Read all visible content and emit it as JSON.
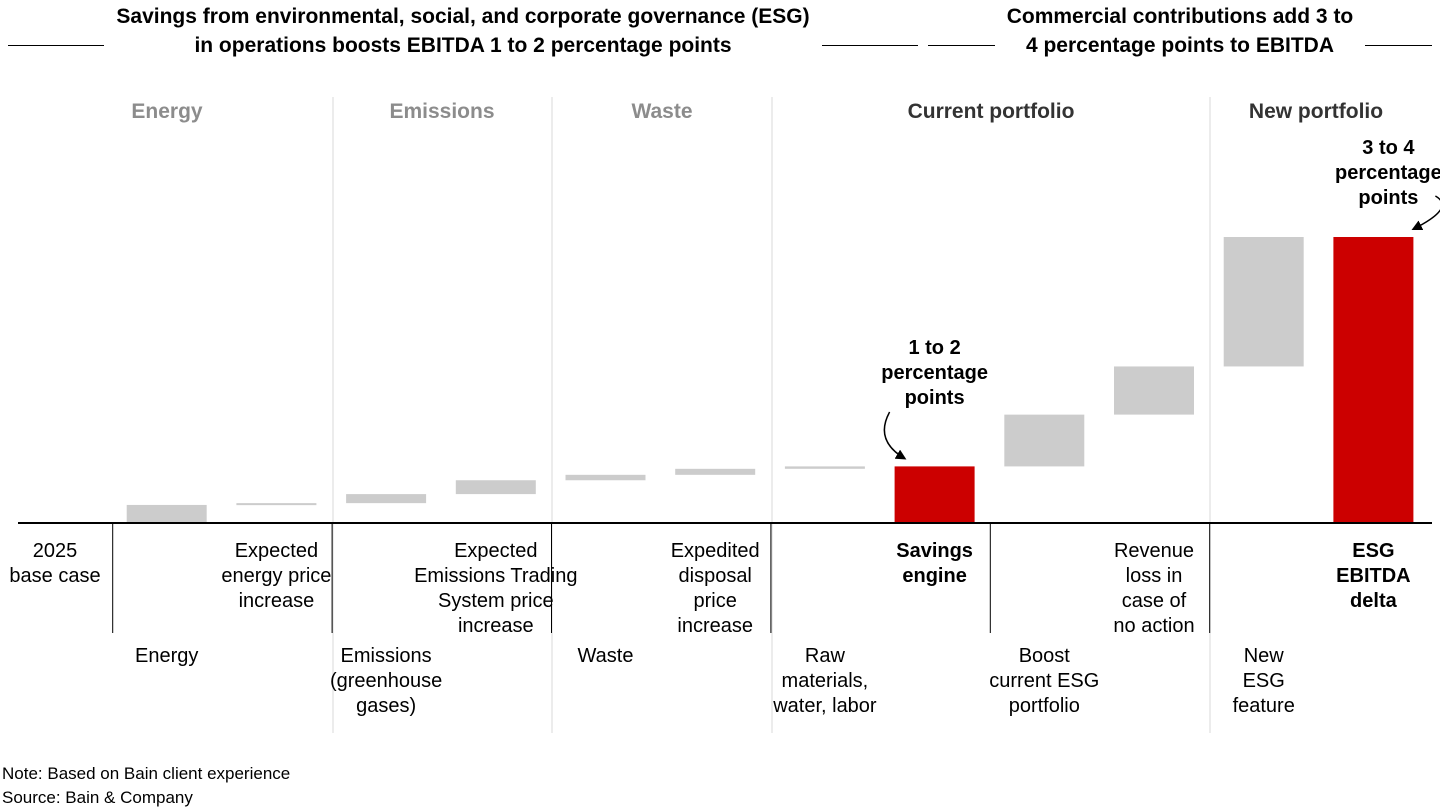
{
  "headers": {
    "left": "Savings from environmental, social, and corporate governance (ESG)\nin operations boosts EBITDA 1 to 2 percentage points",
    "right": "Commercial contributions add 3 to\n4 percentage points to EBITDA"
  },
  "footer": {
    "note": "Note: Based on Bain client experience",
    "source": "Source: Bain & Company"
  },
  "chart_data": {
    "type": "bar",
    "subtype": "waterfall",
    "groups": [
      {
        "label": "Energy",
        "color": "#8c8c8c"
      },
      {
        "label": "Emissions",
        "color": "#8c8c8c"
      },
      {
        "label": "Waste",
        "color": "#8c8c8c"
      },
      {
        "label": "Current portfolio",
        "color": "#333333"
      },
      {
        "label": "New portfolio",
        "color": "#333333"
      }
    ],
    "bars": [
      {
        "category": "2025\nbase case",
        "type": "axis",
        "base": 0,
        "top": 0
      },
      {
        "category": "Energy",
        "type": "step",
        "base": 0,
        "top": 0.3
      },
      {
        "category": "Expected\nenergy price\nincrease",
        "type": "step",
        "base": 0.3,
        "top": 0.33
      },
      {
        "category": "Emissions\n(greenhouse\ngases)",
        "type": "step",
        "base": 0.33,
        "top": 0.48
      },
      {
        "category": "Expected\nEmissions Trading\nSystem price\nincrease",
        "type": "step",
        "base": 0.48,
        "top": 0.71
      },
      {
        "category": "Waste",
        "type": "step",
        "base": 0.71,
        "top": 0.8
      },
      {
        "category": "Expedited\ndisposal\nprice\nincrease",
        "type": "step",
        "base": 0.8,
        "top": 0.9
      },
      {
        "category": "Raw\nmaterials,\nwater, labor",
        "type": "step",
        "base": 0.9,
        "top": 0.94
      },
      {
        "category": "Savings\nengine",
        "type": "total",
        "base": 0,
        "top": 0.94
      },
      {
        "category": "Boost\ncurrent ESG\nportfolio",
        "type": "step",
        "base": 0.94,
        "top": 1.8
      },
      {
        "category": "Revenue\nloss in\ncase of\nno action",
        "type": "step",
        "base": 1.8,
        "top": 2.6
      },
      {
        "category": "New\nESG\nfeature",
        "type": "step",
        "base": 2.6,
        "top": 4.75
      },
      {
        "category": "ESG\nEBITDA\ndelta",
        "type": "total",
        "base": 0,
        "top": 4.75
      }
    ],
    "annotations": [
      {
        "text": "1 to 2\npercentage\npoints",
        "target": 8
      },
      {
        "text": "3 to 4\npercentage\npoints",
        "target": 12
      }
    ],
    "colors": {
      "step": "#cccccc",
      "total": "#cc0000",
      "divider": "#d9d9d9",
      "axis": "#000000"
    },
    "ylim": [
      0,
      4.75
    ]
  }
}
